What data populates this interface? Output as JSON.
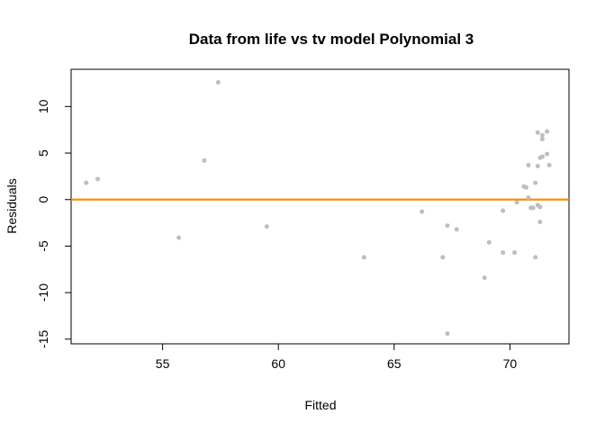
{
  "chart_data": {
    "type": "scatter",
    "title": "Data from life vs tv model Polynomial 3",
    "xlabel": "Fitted",
    "ylabel": "Residuals",
    "xlim": [
      51.05,
      72.55
    ],
    "ylim": [
      -15.5,
      14.0
    ],
    "x_ticks": [
      55,
      60,
      65,
      70
    ],
    "y_ticks": [
      -15,
      -10,
      -5,
      0,
      5,
      10
    ],
    "grid": false,
    "legend": "none",
    "point_color": "#bebebe",
    "reference_line": {
      "y": 0,
      "color": "#ff8c00"
    },
    "points": [
      {
        "x": 51.7,
        "y": 1.8
      },
      {
        "x": 52.2,
        "y": 2.2
      },
      {
        "x": 55.7,
        "y": -4.1
      },
      {
        "x": 56.8,
        "y": 4.2
      },
      {
        "x": 57.4,
        "y": 12.6
      },
      {
        "x": 59.5,
        "y": -2.9
      },
      {
        "x": 63.7,
        "y": -6.2
      },
      {
        "x": 66.2,
        "y": -1.3
      },
      {
        "x": 67.1,
        "y": -6.2
      },
      {
        "x": 67.3,
        "y": -2.8
      },
      {
        "x": 67.3,
        "y": -14.4
      },
      {
        "x": 67.7,
        "y": -3.2
      },
      {
        "x": 68.9,
        "y": -8.4
      },
      {
        "x": 69.1,
        "y": -4.6
      },
      {
        "x": 69.7,
        "y": -1.2
      },
      {
        "x": 69.7,
        "y": -5.7
      },
      {
        "x": 70.2,
        "y": -5.7
      },
      {
        "x": 70.3,
        "y": -0.3
      },
      {
        "x": 70.6,
        "y": 1.4
      },
      {
        "x": 70.7,
        "y": 1.3
      },
      {
        "x": 70.8,
        "y": 3.7
      },
      {
        "x": 70.8,
        "y": 0.2
      },
      {
        "x": 70.9,
        "y": -0.9
      },
      {
        "x": 71.0,
        "y": -0.9
      },
      {
        "x": 71.1,
        "y": -6.2
      },
      {
        "x": 71.1,
        "y": 1.8
      },
      {
        "x": 71.2,
        "y": -0.6
      },
      {
        "x": 71.2,
        "y": 7.2
      },
      {
        "x": 71.2,
        "y": 3.6
      },
      {
        "x": 71.3,
        "y": -2.4
      },
      {
        "x": 71.3,
        "y": 4.5
      },
      {
        "x": 71.3,
        "y": -0.8
      },
      {
        "x": 71.4,
        "y": 6.9
      },
      {
        "x": 71.4,
        "y": 6.5
      },
      {
        "x": 71.4,
        "y": 4.6
      },
      {
        "x": 71.6,
        "y": 7.3
      },
      {
        "x": 71.6,
        "y": 4.9
      },
      {
        "x": 71.7,
        "y": 3.7
      }
    ]
  }
}
